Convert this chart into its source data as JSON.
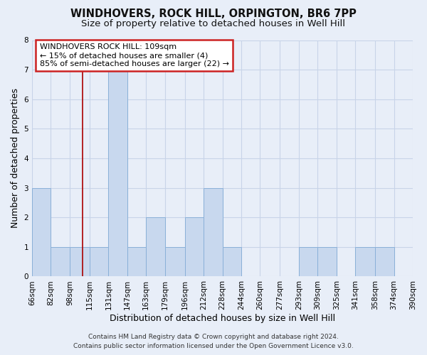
{
  "title": "WINDHOVERS, ROCK HILL, ORPINGTON, BR6 7PP",
  "subtitle": "Size of property relative to detached houses in Well Hill",
  "xlabel": "Distribution of detached houses by size in Well Hill",
  "ylabel": "Number of detached properties",
  "bin_edges": [
    66,
    82,
    98,
    115,
    131,
    147,
    163,
    179,
    196,
    212,
    228,
    244,
    260,
    277,
    293,
    309,
    325,
    341,
    358,
    374,
    390
  ],
  "bin_labels": [
    "66sqm",
    "82sqm",
    "98sqm",
    "115sqm",
    "131sqm",
    "147sqm",
    "163sqm",
    "179sqm",
    "196sqm",
    "212sqm",
    "228sqm",
    "244sqm",
    "260sqm",
    "277sqm",
    "293sqm",
    "309sqm",
    "325sqm",
    "341sqm",
    "358sqm",
    "374sqm",
    "390sqm"
  ],
  "counts": [
    3,
    1,
    1,
    1,
    7,
    1,
    2,
    1,
    2,
    3,
    1,
    0,
    0,
    0,
    1,
    1,
    0,
    1,
    1,
    0
  ],
  "bar_color": "#c8d8ee",
  "bar_edge_color": "#8ab0d8",
  "grid_color": "#c8d4e8",
  "background_color": "#e8eef8",
  "vline_x": 109,
  "vline_color": "#aa0000",
  "ylim": [
    0,
    8
  ],
  "yticks": [
    0,
    1,
    2,
    3,
    4,
    5,
    6,
    7,
    8
  ],
  "annotation_title": "WINDHOVERS ROCK HILL: 109sqm",
  "annotation_line1": "← 15% of detached houses are smaller (4)",
  "annotation_line2": "85% of semi-detached houses are larger (22) →",
  "annotation_box_color": "#ffffff",
  "annotation_edge_color": "#cc2222",
  "footer_line1": "Contains HM Land Registry data © Crown copyright and database right 2024.",
  "footer_line2": "Contains public sector information licensed under the Open Government Licence v3.0.",
  "title_fontsize": 10.5,
  "subtitle_fontsize": 9.5,
  "axis_label_fontsize": 9,
  "tick_fontsize": 7.5,
  "annotation_fontsize": 8,
  "footer_fontsize": 6.5
}
